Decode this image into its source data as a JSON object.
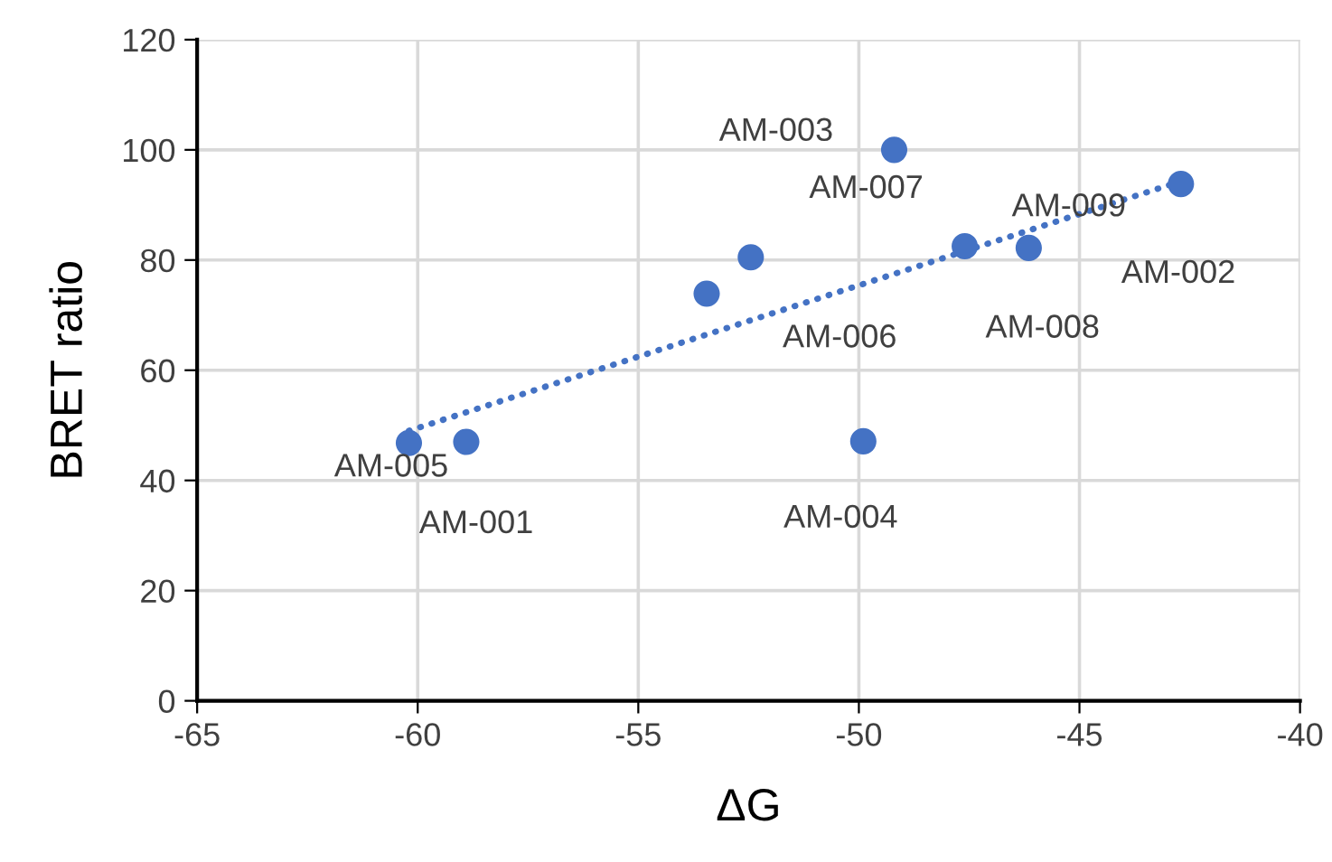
{
  "chart_data": {
    "type": "scatter",
    "xlabel": "ΔG",
    "ylabel": "BRET ratio",
    "series": [
      {
        "color": "#4472c4",
        "marker": "circle",
        "x": [
          -58.9,
          -42.7,
          -49.2,
          -49.9,
          -60.2,
          -53.45,
          -52.45,
          -47.6,
          -46.15
        ],
        "values": [
          47.0,
          93.8,
          100,
          47.1,
          46.8,
          73.9,
          80.5,
          82.5,
          82.2
        ]
      },
      {
        "type": "line",
        "color": "#4472c4",
        "line_style": "dotted",
        "x": [
          -60.2,
          -42.7
        ],
        "values": [
          49,
          94.3
        ]
      }
    ],
    "annotations": [
      {
        "text": "AM-001",
        "x": -58.9,
        "y": 47.0
      },
      {
        "text": "AM-002",
        "x": -42.7,
        "y": 93.8
      },
      {
        "text": "AM-003",
        "x": -49.2,
        "y": 100
      },
      {
        "text": "AM-004",
        "x": -49.9,
        "y": 47.1
      },
      {
        "text": "AM-005",
        "x": -60.2,
        "y": 46.8
      },
      {
        "text": "AM-006",
        "x": -53.45,
        "y": 73.9
      },
      {
        "text": "AM-007",
        "x": -52.45,
        "y": 80.5
      },
      {
        "text": "AM-008",
        "x": -47.6,
        "y": 82.5
      },
      {
        "text": "AM-009",
        "x": -46.15,
        "y": 82.2
      }
    ],
    "xlim": [
      -65,
      -40
    ],
    "xticks": [
      -65,
      -60,
      -55,
      -50,
      -45,
      -40
    ],
    "ylim": [
      0,
      120
    ],
    "yticks": [
      0,
      20,
      40,
      60,
      80,
      100,
      120
    ],
    "grid": true
  }
}
